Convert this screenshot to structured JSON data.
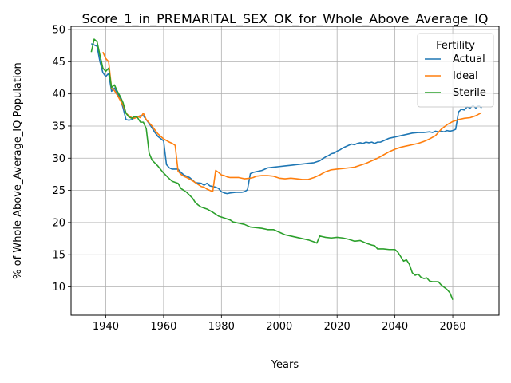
{
  "chart_data": {
    "type": "line",
    "title": "Score_1_in_PREMARITAL_SEX_OK_for_Whole_Above_Average_IQ",
    "xlabel": "Years",
    "ylabel": "% of Whole Above_Average_IQ Population",
    "xlim": [
      1928,
      2076
    ],
    "ylim": [
      5.6,
      50.5
    ],
    "xticks": [
      1940,
      1960,
      1980,
      2000,
      2020,
      2040,
      2060
    ],
    "yticks": [
      10,
      15,
      20,
      25,
      30,
      35,
      40,
      45,
      50
    ],
    "grid": true,
    "legend": {
      "title": "Fertility",
      "placement": "top-right"
    },
    "series": [
      {
        "name": "Actual",
        "color": "#1f77b4",
        "points": [
          [
            1935,
            47.8
          ],
          [
            1937,
            47.4
          ],
          [
            1938,
            45
          ],
          [
            1939,
            43.3
          ],
          [
            1940,
            42.7
          ],
          [
            1941,
            43.2
          ],
          [
            1942,
            40.4
          ],
          [
            1943,
            40.9
          ],
          [
            1945,
            39.3
          ],
          [
            1946,
            37.8
          ],
          [
            1947,
            36
          ],
          [
            1948,
            35.9
          ],
          [
            1949,
            36
          ],
          [
            1950,
            36.3
          ],
          [
            1952,
            36.6
          ],
          [
            1953,
            36.6
          ],
          [
            1955,
            35.4
          ],
          [
            1957,
            34
          ],
          [
            1958,
            33.4
          ],
          [
            1960,
            32.7
          ],
          [
            1961,
            29
          ],
          [
            1962,
            28.5
          ],
          [
            1963,
            28.3
          ],
          [
            1965,
            28.3
          ],
          [
            1966,
            27.8
          ],
          [
            1967,
            27.4
          ],
          [
            1969,
            27
          ],
          [
            1970,
            26.6
          ],
          [
            1971,
            26.2
          ],
          [
            1973,
            26.1
          ],
          [
            1974,
            25.8
          ],
          [
            1975,
            26.1
          ],
          [
            1976,
            25.7
          ],
          [
            1978,
            25.5
          ],
          [
            1979,
            25.3
          ],
          [
            1980,
            24.8
          ],
          [
            1981,
            24.6
          ],
          [
            1982,
            24.5
          ],
          [
            1983,
            24.6
          ],
          [
            1985,
            24.7
          ],
          [
            1987,
            24.7
          ],
          [
            1988,
            24.8
          ],
          [
            1989,
            25.1
          ],
          [
            1990,
            27.6
          ],
          [
            1991,
            27.8
          ],
          [
            1992,
            27.9
          ],
          [
            1994,
            28.1
          ],
          [
            1995,
            28.3
          ],
          [
            1996,
            28.5
          ],
          [
            1998,
            28.6
          ],
          [
            2000,
            28.7
          ],
          [
            2002,
            28.8
          ],
          [
            2004,
            28.9
          ],
          [
            2006,
            29
          ],
          [
            2008,
            29.1
          ],
          [
            2010,
            29.2
          ],
          [
            2012,
            29.3
          ],
          [
            2014,
            29.6
          ],
          [
            2015,
            29.9
          ],
          [
            2016,
            30.2
          ],
          [
            2017,
            30.4
          ],
          [
            2018,
            30.7
          ],
          [
            2019,
            30.8
          ],
          [
            2020,
            31.1
          ],
          [
            2021,
            31.3
          ],
          [
            2022,
            31.6
          ],
          [
            2023,
            31.8
          ],
          [
            2024,
            32
          ],
          [
            2025,
            32.2
          ],
          [
            2026,
            32.1
          ],
          [
            2027,
            32.3
          ],
          [
            2028,
            32.4
          ],
          [
            2029,
            32.3
          ],
          [
            2030,
            32.5
          ],
          [
            2031,
            32.4
          ],
          [
            2032,
            32.5
          ],
          [
            2033,
            32.3
          ],
          [
            2034,
            32.5
          ],
          [
            2035,
            32.5
          ],
          [
            2036,
            32.7
          ],
          [
            2037,
            32.9
          ],
          [
            2038,
            33.1
          ],
          [
            2040,
            33.3
          ],
          [
            2042,
            33.5
          ],
          [
            2044,
            33.7
          ],
          [
            2046,
            33.9
          ],
          [
            2048,
            34
          ],
          [
            2050,
            34
          ],
          [
            2052,
            34.1
          ],
          [
            2053,
            34
          ],
          [
            2054,
            34.2
          ],
          [
            2055,
            34.1
          ],
          [
            2056,
            34.2
          ],
          [
            2057,
            34.1
          ],
          [
            2058,
            34.3
          ],
          [
            2059,
            34.2
          ],
          [
            2060,
            34.3
          ],
          [
            2061,
            34.5
          ],
          [
            2062,
            37.2
          ],
          [
            2063,
            37.6
          ],
          [
            2064,
            37.5
          ],
          [
            2065,
            38
          ],
          [
            2066,
            37.8
          ],
          [
            2067,
            38.2
          ],
          [
            2068,
            37.8
          ],
          [
            2069,
            38.2
          ],
          [
            2070,
            37.8
          ]
        ]
      },
      {
        "name": "Ideal",
        "color": "#ff7f0e",
        "points": [
          [
            1939,
            46.5
          ],
          [
            1940,
            45.5
          ],
          [
            1941,
            45
          ],
          [
            1942,
            40.9
          ],
          [
            1943,
            40.5
          ],
          [
            1944,
            39.8
          ],
          [
            1945,
            39
          ],
          [
            1946,
            38.2
          ],
          [
            1947,
            37
          ],
          [
            1948,
            36.6
          ],
          [
            1949,
            36.3
          ],
          [
            1950,
            36.2
          ],
          [
            1951,
            36.5
          ],
          [
            1952,
            36.3
          ],
          [
            1953,
            37
          ],
          [
            1954,
            36
          ],
          [
            1956,
            35
          ],
          [
            1957,
            34.4
          ],
          [
            1958,
            33.8
          ],
          [
            1960,
            33
          ],
          [
            1962,
            32.5
          ],
          [
            1963,
            32.3
          ],
          [
            1964,
            32
          ],
          [
            1965,
            28
          ],
          [
            1966,
            27.5
          ],
          [
            1967,
            27.2
          ],
          [
            1968,
            27
          ],
          [
            1970,
            26.5
          ],
          [
            1972,
            25.9
          ],
          [
            1973,
            25.6
          ],
          [
            1974,
            25.5
          ],
          [
            1975,
            25.2
          ],
          [
            1977,
            24.8
          ],
          [
            1978,
            28.1
          ],
          [
            1979,
            27.8
          ],
          [
            1980,
            27.4
          ],
          [
            1981,
            27.3
          ],
          [
            1982,
            27.1
          ],
          [
            1983,
            27
          ],
          [
            1984,
            27
          ],
          [
            1986,
            27
          ],
          [
            1988,
            26.8
          ],
          [
            1990,
            26.9
          ],
          [
            1991,
            27
          ],
          [
            1992,
            27.2
          ],
          [
            1994,
            27.3
          ],
          [
            1996,
            27.3
          ],
          [
            1998,
            27.2
          ],
          [
            2000,
            26.9
          ],
          [
            2002,
            26.8
          ],
          [
            2004,
            26.9
          ],
          [
            2006,
            26.8
          ],
          [
            2008,
            26.7
          ],
          [
            2010,
            26.7
          ],
          [
            2012,
            27
          ],
          [
            2014,
            27.4
          ],
          [
            2016,
            27.9
          ],
          [
            2018,
            28.2
          ],
          [
            2020,
            28.3
          ],
          [
            2022,
            28.4
          ],
          [
            2024,
            28.5
          ],
          [
            2026,
            28.6
          ],
          [
            2028,
            28.9
          ],
          [
            2030,
            29.2
          ],
          [
            2032,
            29.6
          ],
          [
            2034,
            30
          ],
          [
            2036,
            30.5
          ],
          [
            2038,
            31
          ],
          [
            2040,
            31.4
          ],
          [
            2042,
            31.7
          ],
          [
            2044,
            31.9
          ],
          [
            2046,
            32.1
          ],
          [
            2048,
            32.3
          ],
          [
            2050,
            32.6
          ],
          [
            2052,
            33
          ],
          [
            2054,
            33.5
          ],
          [
            2056,
            34.5
          ],
          [
            2058,
            35.2
          ],
          [
            2060,
            35.7
          ],
          [
            2062,
            36
          ],
          [
            2064,
            36.2
          ],
          [
            2066,
            36.3
          ],
          [
            2068,
            36.6
          ],
          [
            2070,
            37.1
          ]
        ]
      },
      {
        "name": "Sterile",
        "color": "#2ca02c",
        "points": [
          [
            1935,
            46.5
          ],
          [
            1936,
            48.5
          ],
          [
            1937,
            48.1
          ],
          [
            1938,
            46
          ],
          [
            1939,
            44
          ],
          [
            1940,
            43.5
          ],
          [
            1941,
            44
          ],
          [
            1942,
            41
          ],
          [
            1943,
            41.4
          ],
          [
            1944,
            40.4
          ],
          [
            1945,
            39.6
          ],
          [
            1946,
            38.6
          ],
          [
            1947,
            37
          ],
          [
            1948,
            36.4
          ],
          [
            1949,
            36.2
          ],
          [
            1950,
            36.5
          ],
          [
            1951,
            36.3
          ],
          [
            1952,
            35.6
          ],
          [
            1953,
            35.6
          ],
          [
            1954,
            34.6
          ],
          [
            1955,
            30.8
          ],
          [
            1956,
            29.7
          ],
          [
            1958,
            28.8
          ],
          [
            1960,
            27.7
          ],
          [
            1962,
            26.8
          ],
          [
            1963,
            26.4
          ],
          [
            1965,
            26.1
          ],
          [
            1966,
            25.3
          ],
          [
            1968,
            24.7
          ],
          [
            1970,
            23.8
          ],
          [
            1971,
            23.1
          ],
          [
            1972,
            22.7
          ],
          [
            1973,
            22.4
          ],
          [
            1975,
            22.1
          ],
          [
            1977,
            21.6
          ],
          [
            1979,
            21
          ],
          [
            1981,
            20.7
          ],
          [
            1983,
            20.4
          ],
          [
            1984,
            20.1
          ],
          [
            1986,
            19.9
          ],
          [
            1988,
            19.7
          ],
          [
            1990,
            19.3
          ],
          [
            1992,
            19.2
          ],
          [
            1994,
            19.1
          ],
          [
            1996,
            18.9
          ],
          [
            1998,
            18.9
          ],
          [
            2000,
            18.5
          ],
          [
            2002,
            18.1
          ],
          [
            2004,
            17.9
          ],
          [
            2006,
            17.7
          ],
          [
            2008,
            17.5
          ],
          [
            2010,
            17.3
          ],
          [
            2012,
            17
          ],
          [
            2013,
            16.8
          ],
          [
            2014,
            17.9
          ],
          [
            2015,
            17.8
          ],
          [
            2016,
            17.7
          ],
          [
            2018,
            17.6
          ],
          [
            2020,
            17.7
          ],
          [
            2022,
            17.6
          ],
          [
            2024,
            17.4
          ],
          [
            2026,
            17.1
          ],
          [
            2028,
            17.2
          ],
          [
            2030,
            16.8
          ],
          [
            2032,
            16.5
          ],
          [
            2033,
            16.4
          ],
          [
            2034,
            15.9
          ],
          [
            2036,
            15.9
          ],
          [
            2038,
            15.8
          ],
          [
            2040,
            15.8
          ],
          [
            2041,
            15.4
          ],
          [
            2042,
            14.7
          ],
          [
            2043,
            14
          ],
          [
            2044,
            14.2
          ],
          [
            2045,
            13.5
          ],
          [
            2046,
            12.2
          ],
          [
            2047,
            11.8
          ],
          [
            2048,
            12
          ],
          [
            2049,
            11.5
          ],
          [
            2050,
            11.3
          ],
          [
            2051,
            11.4
          ],
          [
            2052,
            10.9
          ],
          [
            2053,
            10.8
          ],
          [
            2055,
            10.8
          ],
          [
            2056,
            10.3
          ],
          [
            2058,
            9.6
          ],
          [
            2059,
            9.1
          ],
          [
            2060,
            8
          ]
        ]
      }
    ]
  }
}
